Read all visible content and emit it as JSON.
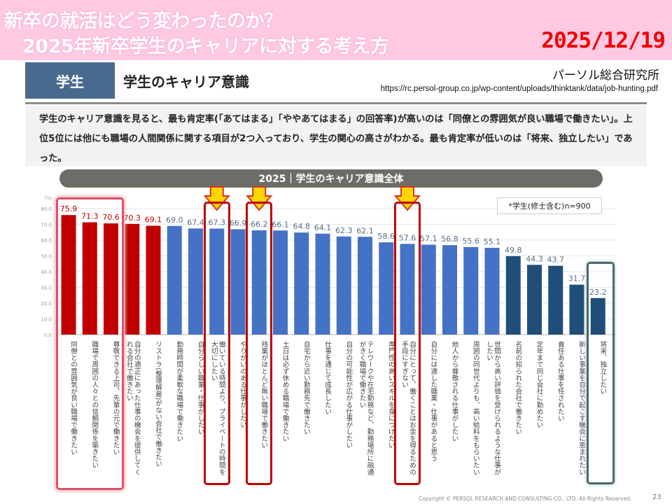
{
  "banner": {
    "title_line1": "新卒の就活はどう変わったのか？",
    "title_line2": "2025年新卒学生のキャリアに対する考え方",
    "date": "2025/12/19"
  },
  "section": {
    "tag": "学生",
    "title": "学生のキャリア意識",
    "source_name": "パーソル総合研究所",
    "source_url": "https://rc.persol-group.co.jp/wp-content/uploads/thinktank/data/job-hunting.pdf"
  },
  "description": "学生のキャリア意識を見ると、最も肯定率(「あてはまる」「ややあてはまる」の回答率)が高いのは「同僚との雰囲気が良い職場で働きたい」。上位5位には他にも職場の人間関係に関する項目が2つ入っており、学生の関心の高さがわかる。最も肯定率が低いのは「将来、独立したい」であった。",
  "colors": {
    "red": "#c00000",
    "blue": "#4472c4",
    "navy": "#1f4e79",
    "arrow": "#ffd700"
  },
  "chart_data": {
    "type": "bar",
    "title": "2025｜学生のキャリア意識全体",
    "note": "*学生(修士含む)n=900",
    "ylabel": "(%)",
    "ylim": [
      0,
      80
    ],
    "yticks": [
      "0.0",
      "10.0",
      "20.0",
      "30.0",
      "40.0",
      "50.0",
      "60.0",
      "70.0",
      "80.0"
    ],
    "grid": true,
    "categories": [
      "同僚との雰囲気が良い職場で働きたい",
      "職場で周囲の人々との信頼関係を築きたい",
      "尊敬できる上司、先輩の元で働きたい",
      "自分の適正にあった仕事の機会を提供してくれる会社で働きたい",
      "リストラ(整理解雇)がない会社で働きたい",
      "勤務時間が柔軟な職場で働きたい",
      "自分らしい職業・仕事がしたい",
      "働いている時間より、プライベートの時間を大切にしたい",
      "やりがいのある仕事がしたい",
      "残業がほとんど無い職場で働きたい",
      "土日は必ず休める職場で働きたい",
      "自宅から近い勤務先で働きたい",
      "仕事を通じて成長したい",
      "自分の可能性が広がる仕事がしたい",
      "テレワークや在宅勤務など、勤務場所に融通がきく職場で働きたい",
      "専門性の高いスキルを身につけたい",
      "自分にとって、働くことはお金を得るための手段にすぎない",
      "自分には適した職業・仕事があると思う",
      "他人から尊敬される仕事がしたい",
      "周囲の同世代よりも、高い給料をもらいたい",
      "世間から高い評価を受けられるような仕事がしたい",
      "名前の知られた会社で働きたい",
      "定年まで同じ会社に勤めたい",
      "責任ある仕事を任されたい",
      "新しい事業を自分で起こす機会に恵まれたい",
      "将来、独立したい"
    ],
    "values": [
      75.9,
      71.3,
      70.6,
      70.3,
      69.1,
      69.0,
      67.4,
      67.3,
      66.9,
      66.2,
      66.1,
      64.8,
      64.1,
      62.3,
      62.1,
      58.6,
      57.6,
      57.1,
      56.8,
      55.6,
      55.1,
      49.8,
      44.3,
      43.7,
      31.7,
      23.2
    ],
    "value_labels": [
      "75.9",
      "71.3",
      "70.6",
      "70.3",
      "69.1",
      "69.0",
      "67.4",
      "67.3",
      "66.9",
      "66.2",
      "66.1",
      "64.8",
      "64.1",
      "62.3",
      "62.1",
      "58.6",
      "57.6",
      "57.1",
      "56.8",
      "55.6",
      "55.1",
      "49.8",
      "44.3",
      "43.7",
      "31.7",
      "23.2"
    ],
    "color_groups": [
      "red",
      "red",
      "red",
      "red",
      "red",
      "blue",
      "blue",
      "blue",
      "blue",
      "blue",
      "blue",
      "blue",
      "blue",
      "blue",
      "blue",
      "blue",
      "blue",
      "blue",
      "blue",
      "blue",
      "blue",
      "navy",
      "navy",
      "navy",
      "navy",
      "navy"
    ],
    "highlighted": [
      7,
      9,
      16
    ]
  },
  "footer": {
    "copyright": "Copyright © PERSOL RESEARCH AND CONSULTING CO., LTD. All Rights Reserved.",
    "page": "23"
  }
}
